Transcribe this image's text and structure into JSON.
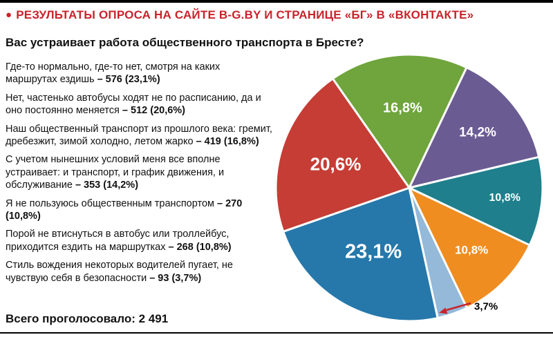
{
  "header": {
    "bullet": "●",
    "title": "РЕЗУЛЬТАТЫ ОПРОСА НА САЙТЕ B-G.BY И СТРАНИЦЕ «БГ» В «ВКОНТАКТЕ»",
    "accent_red": "#c9232b",
    "question": "Вас устраивает работа общественного транспорта в Бресте?"
  },
  "answers": [
    {
      "text": "Где-то нормально, где-то нет, смотря на каких маршрутах ездишь ",
      "value": "– 576 (23,1%)"
    },
    {
      "text": "Нет, частенько автобусы ходят не по расписанию, да и оно постоянно меняется ",
      "value": "– 512 (20,6%)"
    },
    {
      "text": "Наш общественный транспорт из прошлого века: гремит, дребезжит, зимой холодно, летом жарко ",
      "value": "– 419 (16,8%)"
    },
    {
      "text": "С учетом нынешних условий меня все вполне устраивает: и транспорт, и график движения, и обслуживание ",
      "value": "– 353 (14,2%)"
    },
    {
      "text": "Я не пользуюсь общественным транспортом ",
      "value": "– 270 (10,8%)"
    },
    {
      "text": "Порой не втиснуться в автобус или троллейбус, приходится ездить на маршрутках ",
      "value": "– 268 (10,8%)"
    },
    {
      "text": "Стиль вождения некоторых водителей пугает, не чувствую себя в безопасности ",
      "value": "– 93 (3,7%)"
    }
  ],
  "footer": {
    "total_label": "Всего проголосовало: 2 491"
  },
  "chart_data": {
    "type": "pie",
    "title": "Вас устраивает работа общественного транспорта в Бресте?",
    "total_votes": 2491,
    "legend_position": "none",
    "start_angle_deg": -35,
    "slices": [
      {
        "category": "Наш общественный транспорт из прошлого века: гремит, дребезжит, зимой холодно, летом жарко",
        "count": 419,
        "pct": 16.8,
        "label": "16,8%",
        "color": "#6fa53c",
        "label_size": 20,
        "label_r": 0.6
      },
      {
        "category": "С учетом нынешних условий меня все вполне устраивает: и транспорт, и график движения, и обслуживание",
        "count": 353,
        "pct": 14.2,
        "label": "14,2%",
        "color": "#6b5b93",
        "label_size": 19,
        "label_r": 0.66
      },
      {
        "category": "Я не пользуюсь общественным транспортом",
        "count": 270,
        "pct": 10.8,
        "label": "10,8%",
        "color": "#1f7f8c",
        "label_size": 16,
        "label_r": 0.72
      },
      {
        "category": "Порой не втиснуться в автобус или троллейбус, приходится ездить на маршрутках",
        "count": 268,
        "pct": 10.8,
        "label": "10,8%",
        "color": "#ef8d20",
        "label_size": 17,
        "label_r": 0.66
      },
      {
        "category": "Стиль вождения некоторых водителей пугает, не чувствую себя в безопасности",
        "count": 93,
        "pct": 3.7,
        "label": "3,7%",
        "color": "#94b9d9",
        "label_size": 15,
        "external": true
      },
      {
        "category": "Где-то нормально, где-то нет, смотря на каких маршрутах ездишь",
        "count": 576,
        "pct": 23.1,
        "label": "23,1%",
        "color": "#2678ab",
        "label_size": 29,
        "label_r": 0.55
      },
      {
        "category": "Нет, частенько автобусы ходят не по расписанию, да и оно постоянно меняется",
        "count": 512,
        "pct": 20.6,
        "label": "20,6%",
        "color": "#c53d35",
        "label_size": 26,
        "label_r": 0.58
      }
    ],
    "annotation": {
      "text": "3,7%",
      "text_color": "#000000",
      "arrow_color": "#c9232b"
    }
  }
}
